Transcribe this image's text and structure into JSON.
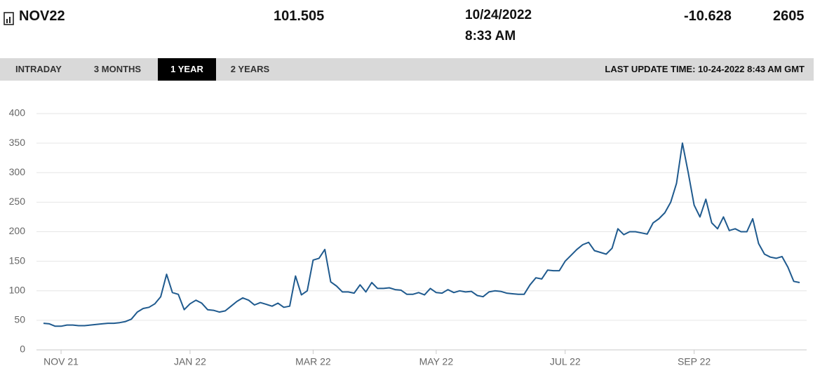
{
  "header": {
    "symbol": "NOV22",
    "price": "101.505",
    "date": "10/24/2022",
    "time": "8:33 AM",
    "change": "-10.628",
    "volume": "2605"
  },
  "tabs": [
    "INTRADAY",
    "3 MONTHS",
    "1 YEAR",
    "2 YEARS"
  ],
  "active_tab": 2,
  "last_update": "LAST UPDATE TIME: 10-24-2022 8:43 AM GMT",
  "chart_data": {
    "type": "line",
    "color": "#1f5a8e",
    "grid": true,
    "ylim": [
      0,
      400
    ],
    "yticks": [
      0,
      50,
      100,
      150,
      200,
      250,
      300,
      350,
      400
    ],
    "categories": [
      null,
      null,
      null,
      "NOV 21",
      null,
      null,
      null,
      null,
      null,
      null,
      null,
      null,
      null,
      null,
      null,
      null,
      null,
      null,
      null,
      null,
      null,
      null,
      null,
      null,
      null,
      "JAN 22",
      null,
      null,
      null,
      null,
      null,
      null,
      null,
      null,
      null,
      null,
      null,
      null,
      null,
      null,
      null,
      null,
      null,
      null,
      null,
      null,
      "MAR 22",
      null,
      null,
      null,
      null,
      null,
      null,
      null,
      null,
      null,
      null,
      null,
      null,
      null,
      null,
      null,
      null,
      null,
      null,
      null,
      null,
      "MAY 22",
      null,
      null,
      null,
      null,
      null,
      null,
      null,
      null,
      null,
      null,
      null,
      null,
      null,
      null,
      null,
      null,
      null,
      null,
      null,
      null,
      null,
      "JUL 22",
      null,
      null,
      null,
      null,
      null,
      null,
      null,
      null,
      null,
      null,
      null,
      null,
      null,
      null,
      null,
      null,
      null,
      null,
      null,
      null,
      null,
      "SEP 22",
      null,
      null,
      null,
      null,
      null,
      null,
      null,
      null,
      null,
      null,
      null,
      null,
      null,
      null,
      null,
      null,
      null,
      null
    ],
    "values": [
      45,
      44,
      40,
      40,
      42,
      42,
      41,
      41,
      42,
      43,
      44,
      45,
      45,
      46,
      48,
      52,
      64,
      70,
      72,
      78,
      90,
      128,
      97,
      94,
      68,
      78,
      84,
      79,
      68,
      67,
      64,
      66,
      74,
      82,
      88,
      84,
      76,
      80,
      77,
      74,
      79,
      72,
      74,
      125,
      93,
      100,
      152,
      155,
      170,
      115,
      108,
      98,
      98,
      96,
      110,
      98,
      114,
      104,
      104,
      105,
      102,
      101,
      94,
      94,
      97,
      93,
      104,
      97,
      96,
      102,
      97,
      100,
      98,
      99,
      92,
      90,
      98,
      100,
      99,
      96,
      95,
      94,
      94,
      110,
      122,
      120,
      135,
      134,
      134,
      150,
      160,
      170,
      178,
      182,
      168,
      165,
      162,
      172,
      205,
      195,
      200,
      200,
      198,
      196,
      215,
      222,
      232,
      250,
      282,
      350,
      300,
      245,
      225,
      255,
      215,
      205,
      225,
      202,
      205,
      200,
      200,
      222,
      180,
      162,
      157,
      155,
      158,
      140,
      116,
      114
    ]
  }
}
